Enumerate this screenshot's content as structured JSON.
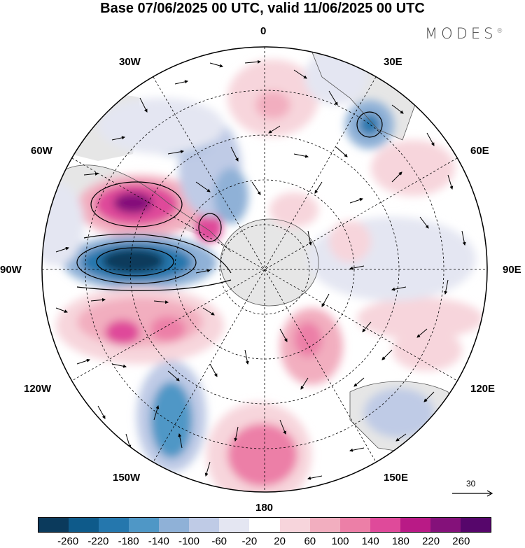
{
  "title": "Base 07/06/2025 00 UTC, valid 11/06/2025 00 UTC",
  "brand": "MODES",
  "brand_mark": "®",
  "lon_labels": {
    "top": "0",
    "top_right": "30E",
    "right_upper": "60E",
    "right": "90E",
    "right_lower": "120E",
    "bottom_right": "150E",
    "bottom": "180",
    "bottom_left": "150W",
    "left_lower": "120W",
    "left": "90W",
    "left_upper": "60W",
    "top_left": "30W"
  },
  "reference_vector": "30",
  "colorbar": {
    "colors": [
      "#0b3a5c",
      "#0e5a8a",
      "#2577ad",
      "#4f97c6",
      "#8fb1d7",
      "#bfcbe6",
      "#e4e6f2",
      "#ffffff",
      "#f7d5dc",
      "#f2aebf",
      "#ec7fa7",
      "#df4a9a",
      "#b91a86",
      "#84117a",
      "#56066b"
    ],
    "ticks": [
      "-260",
      "-220",
      "-180",
      "-140",
      "-100",
      "-60",
      "-20",
      "20",
      "60",
      "100",
      "140",
      "180",
      "220",
      "260"
    ]
  }
}
